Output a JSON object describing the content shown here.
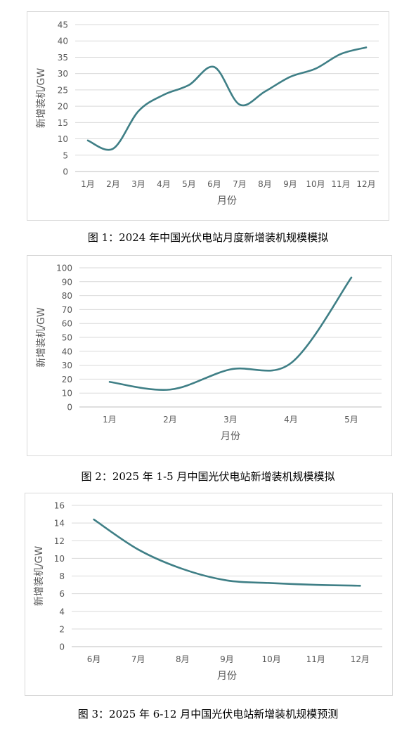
{
  "chart_data": [
    {
      "type": "line",
      "categories": [
        "1月",
        "2月",
        "3月",
        "4月",
        "5月",
        "6月",
        "7月",
        "8月",
        "9月",
        "10月",
        "11月",
        "12月"
      ],
      "series": [
        {
          "values": [
            9.5,
            7,
            18.5,
            23.5,
            26.5,
            32,
            20.5,
            24.5,
            29,
            31.5,
            36,
            38
          ]
        }
      ],
      "xlabel": "月份",
      "ylabel": "新增装机/GW",
      "ylim": [
        0,
        45
      ],
      "yticks": [
        "0",
        "5",
        "10",
        "15",
        "20",
        "25",
        "30",
        "35",
        "40",
        "45"
      ],
      "grid": true,
      "color": "#3f7f86"
    },
    {
      "type": "line",
      "categories": [
        "1月",
        "2月",
        "3月",
        "4月",
        "5月"
      ],
      "series": [
        {
          "values": [
            18,
            12.5,
            27,
            31.5,
            93
          ]
        }
      ],
      "xlabel": "月份",
      "ylabel": "新增装机/GW",
      "ylim": [
        0,
        100
      ],
      "yticks": [
        "0",
        "10",
        "20",
        "30",
        "40",
        "50",
        "60",
        "70",
        "80",
        "90",
        "100"
      ],
      "grid": true,
      "color": "#3f7f86"
    },
    {
      "type": "line",
      "categories": [
        "6月",
        "7月",
        "8月",
        "9月",
        "10月",
        "11月",
        "12月"
      ],
      "series": [
        {
          "values": [
            14.4,
            11,
            8.8,
            7.5,
            7.2,
            7.0,
            6.9
          ]
        }
      ],
      "xlabel": "月份",
      "ylabel": "新增装机/GW",
      "ylim": [
        0,
        16
      ],
      "yticks": [
        "0",
        "2",
        "4",
        "6",
        "8",
        "10",
        "12",
        "14",
        "16"
      ],
      "grid": true,
      "color": "#3f7f86"
    }
  ],
  "captions": [
    "图 1：2024 年中国光伏电站月度新增装机规模模拟",
    "图 2：2025 年 1-5 月中国光伏电站新增装机规模模拟",
    "图 3：2025 年 6-12 月中国光伏电站新增装机规模预测"
  ]
}
